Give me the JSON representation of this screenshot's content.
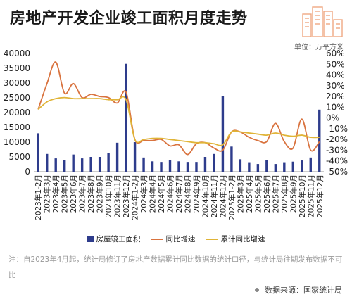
{
  "title": "房地产开发企业竣工面积月度走势",
  "unit": "单位：万平方米",
  "legend": {
    "bar": "房屋竣工面积",
    "line1": "同比增速",
    "line2": "累计同比增速"
  },
  "note": "注：自2023年4月起，统计局修订了房地产数据累计同比数据的统计口径，与统计局往期发布数据不可比",
  "source": "数据来源：国家统计局",
  "colors": {
    "bar": "#2e3c8c",
    "line1": "#d9733f",
    "line2": "#e0b437"
  },
  "chart_data": {
    "type": "bar",
    "categories": [
      "2023年1-2月",
      "2023年3月",
      "2023年4月",
      "2023年5月",
      "2023年6月",
      "2023年7月",
      "2023年8月",
      "2023年9月",
      "2023年10月",
      "2023年11月",
      "2023年12月",
      "2024年1-2月",
      "2024年3月",
      "2024年4月",
      "2024年5月",
      "2024年6月",
      "2024年7月",
      "2024年8月",
      "2024年9月",
      "2024年10月",
      "2024年11月",
      "2024年12月",
      "2025年1-2月",
      "2025年3月",
      "2025年4月",
      "2025年5月",
      "2025年6月",
      "2025年7月",
      "2025年8月",
      "2025年9月",
      "2025年10月",
      "2025年11月",
      "2025年12月"
    ],
    "series": [
      {
        "name": "房屋竣工面积",
        "axis": "left",
        "type": "bar",
        "values": [
          13000,
          6000,
          4500,
          4000,
          5800,
          4500,
          5000,
          5000,
          6300,
          9800,
          36500,
          10000,
          4800,
          3500,
          3300,
          3900,
          3500,
          3300,
          3300,
          5000,
          6000,
          25500,
          8500,
          4200,
          3200,
          2600,
          3900,
          2600,
          3200,
          3400,
          3800,
          4800,
          21000
        ]
      },
      {
        "name": "同比增速",
        "axis": "right",
        "type": "line",
        "values": [
          8,
          32,
          52,
          23,
          32,
          19,
          22,
          20,
          19,
          14,
          24,
          -20,
          -21,
          -21,
          -20,
          -26,
          -25,
          -34,
          -24,
          -23,
          -28,
          -30,
          -13,
          -13,
          -18,
          -21,
          -22,
          -5,
          -22,
          -28,
          -1,
          -30,
          -22
        ]
      },
      {
        "name": "累计同比增速",
        "axis": "right",
        "type": "line",
        "values": [
          8,
          15,
          18,
          19,
          18,
          18,
          18,
          18,
          17,
          17,
          17,
          -20,
          -20,
          -19,
          -19,
          -20,
          -21,
          -22,
          -23,
          -23,
          -24,
          -25,
          -13,
          -13,
          -14,
          -15,
          -16,
          -14,
          -16,
          -17,
          -16,
          -18,
          -18
        ]
      }
    ],
    "y_left": {
      "min": 0,
      "max": 40000,
      "ticks": [
        0,
        5000,
        10000,
        15000,
        20000,
        25000,
        30000,
        35000,
        40000
      ]
    },
    "y_right": {
      "min": -50,
      "max": 60,
      "ticks": [
        60,
        50,
        40,
        30,
        20,
        10,
        0,
        -10,
        -20,
        -30,
        -40,
        -50
      ],
      "format": "percent"
    },
    "grid": false,
    "legend_position": "bottom"
  }
}
